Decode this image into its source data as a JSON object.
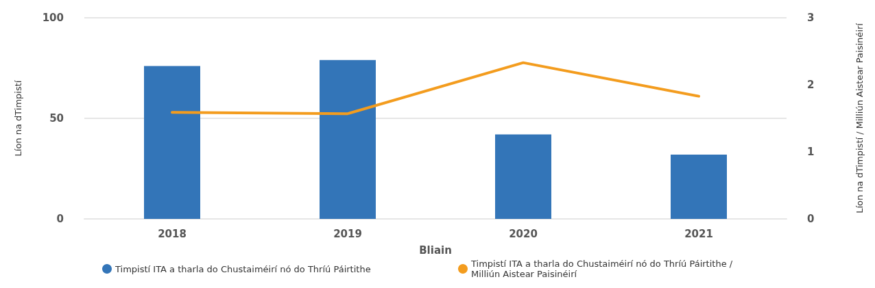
{
  "chart_data": {
    "type": "bar",
    "xlabel": "Bliain",
    "ylabel": "Líon na dTimpistí",
    "y2label": "Líon na dTimpistí / Milliún Aistear Paisinéirí",
    "categories": [
      "2018",
      "2019",
      "2020",
      "2021"
    ],
    "series": [
      {
        "name": "Timpistí ITA a tharla do Chustaiméirí nó do Thríú Páirtithe",
        "color": "#3375b8",
        "values": [
          76,
          79,
          42,
          32
        ]
      },
      {
        "name": "Timpistí ITA a tharla do Chustaiméirí nó do Thríú Páirtithe / Milliún Aistear Paisinéirí",
        "type": "line",
        "axis": "y2",
        "color": "#f39c1e",
        "values": [
          1.59,
          1.57,
          2.33,
          1.83
        ]
      }
    ],
    "ylim": [
      0,
      100
    ],
    "yticks": [
      0,
      50,
      100
    ],
    "y2lim": [
      0,
      3
    ],
    "y2ticks": [
      0,
      1,
      2,
      3
    ],
    "grid": "y",
    "legend": "bottom",
    "marker": "none"
  }
}
